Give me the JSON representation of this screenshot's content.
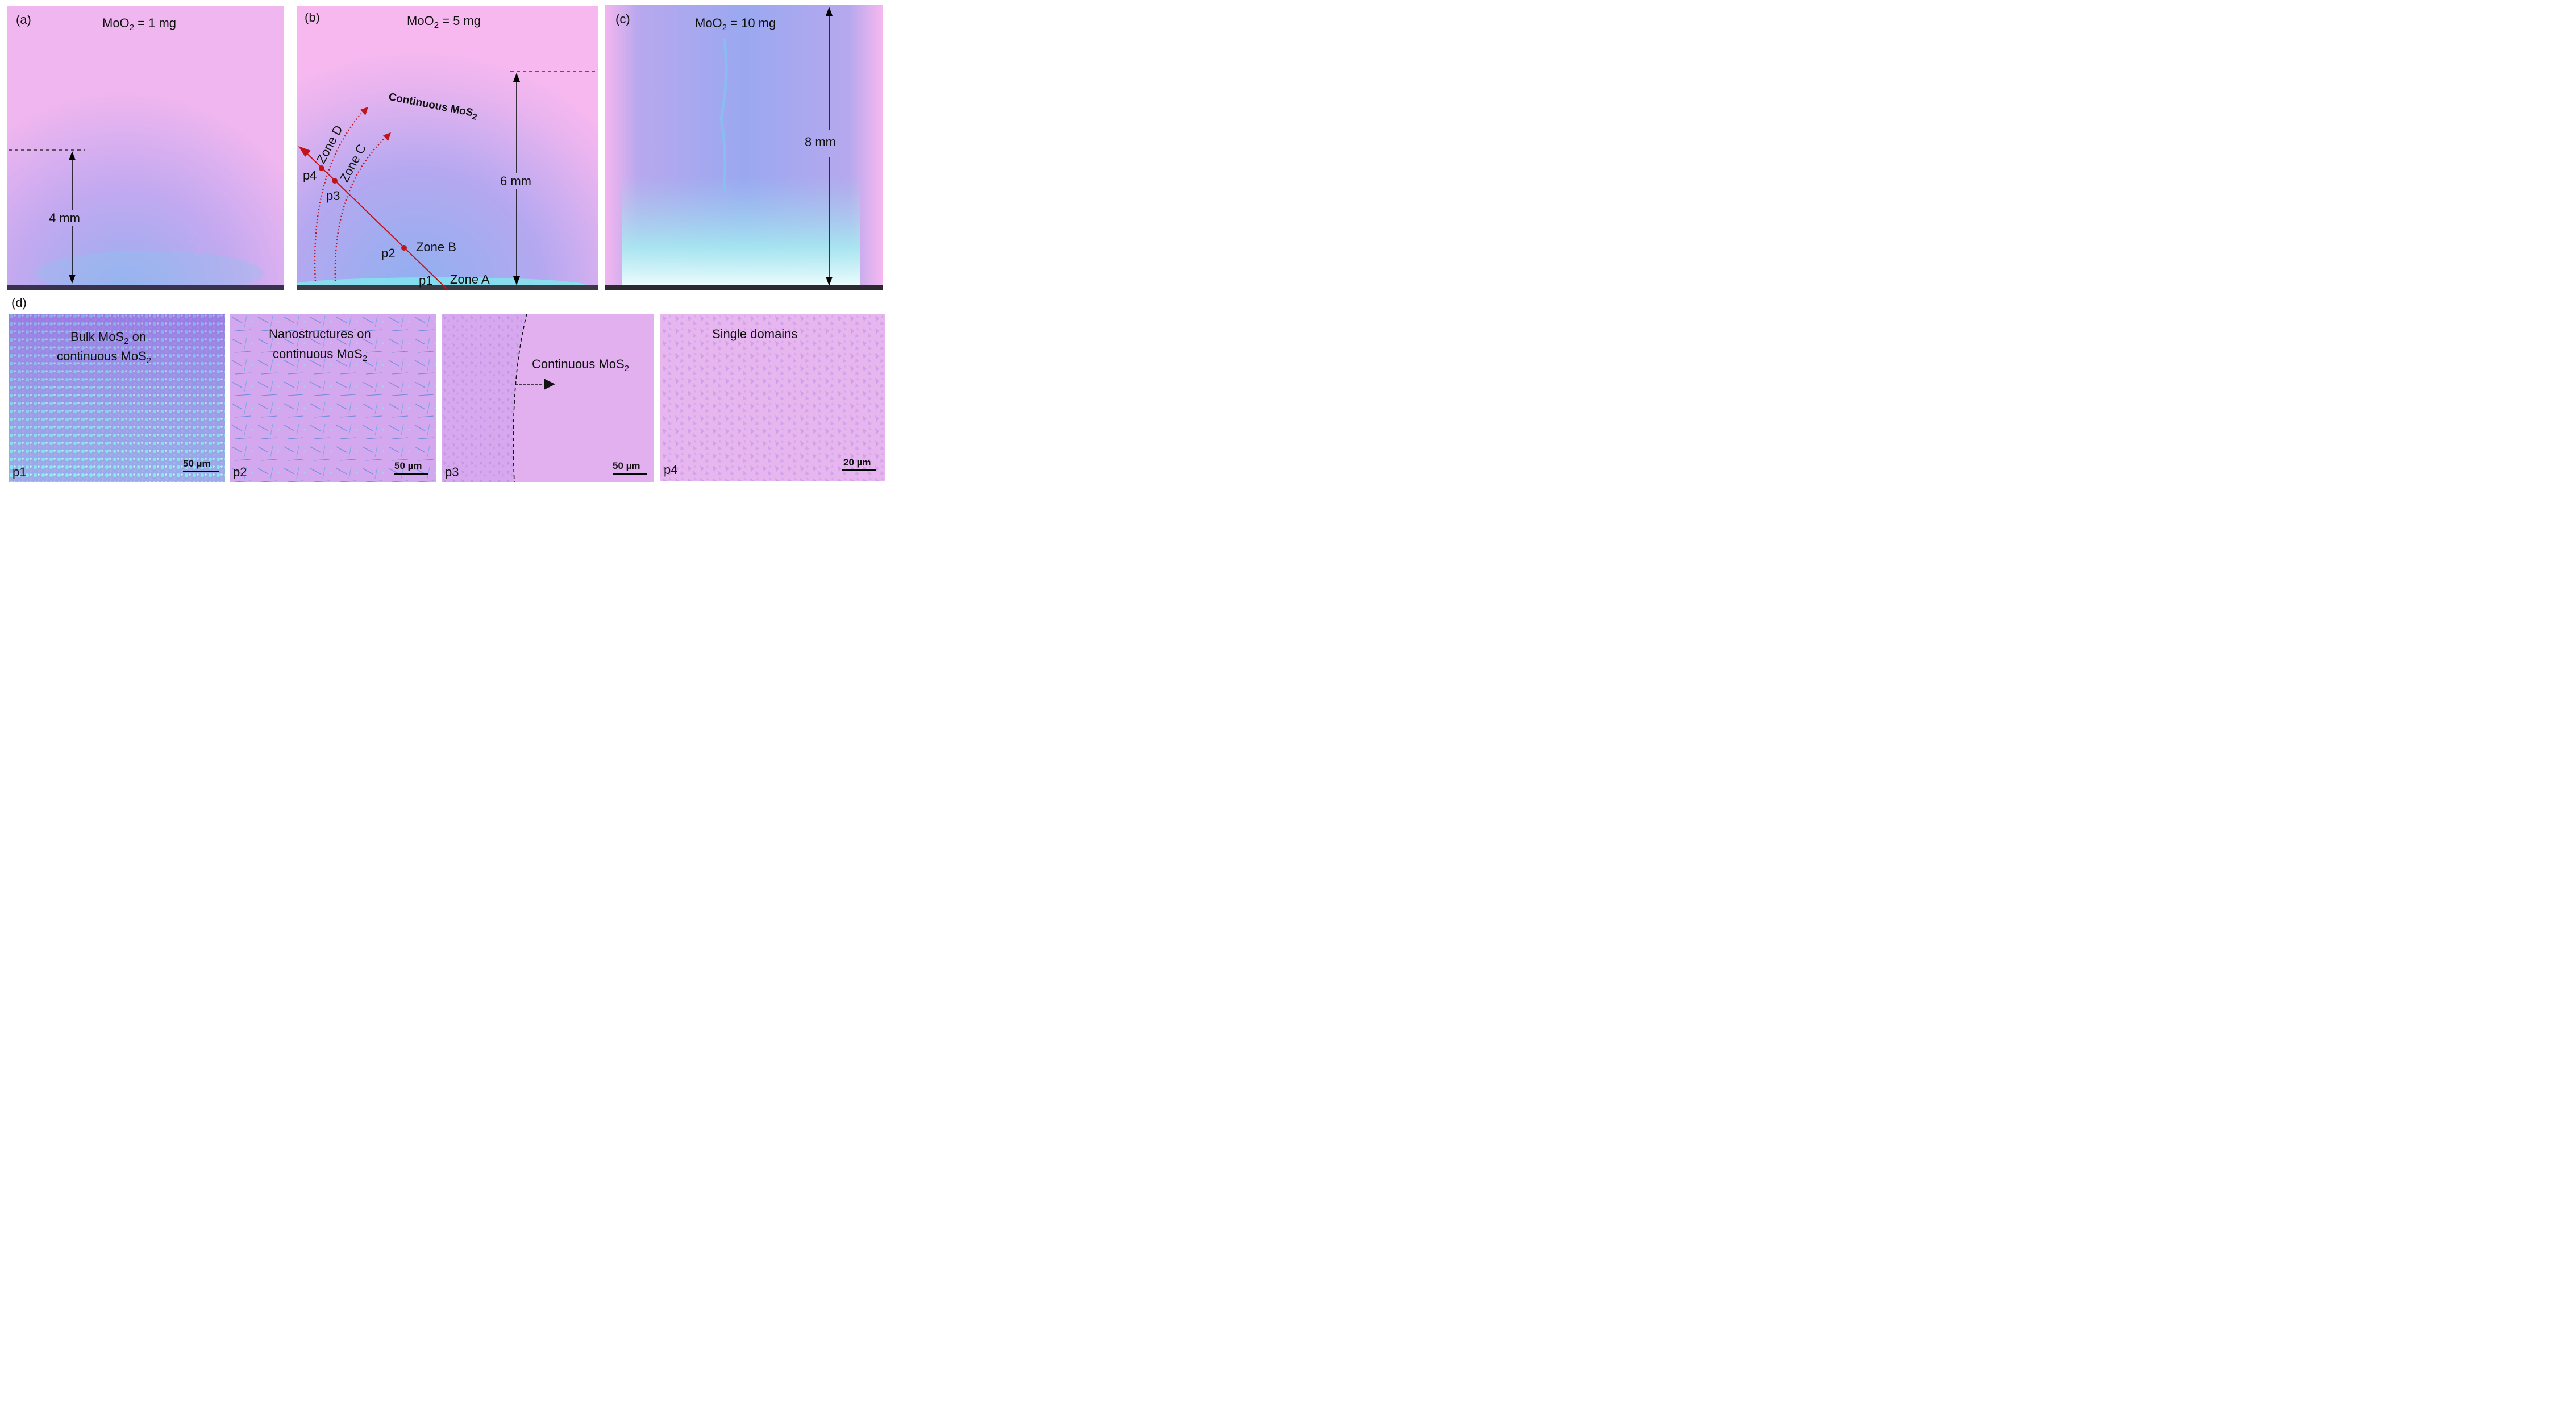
{
  "panel_a": {
    "label": "(a)",
    "title_pre": "MoO",
    "title_sub": "2",
    "title_post": " = 1 mg",
    "height_label": "4 mm"
  },
  "panel_b": {
    "label": "(b)",
    "title_pre": "MoO",
    "title_sub": "2",
    "title_post": " = 5 mg",
    "height_label": "6 mm",
    "continuous_pre": "Continuous MoS",
    "continuous_sub": "2",
    "zone_a": "Zone A",
    "zone_b": "Zone B",
    "zone_c": "Zone C",
    "zone_d": "Zone D",
    "p1": "p1",
    "p2": "p2",
    "p3": "p3",
    "p4": "p4"
  },
  "panel_c": {
    "label": "(c)",
    "title_pre": "MoO",
    "title_sub": "2",
    "title_post": " = 10 mg",
    "height_label": "8 mm"
  },
  "panel_d": {
    "label": "(d)",
    "images": [
      {
        "id": "p1",
        "line1_pre": "Bulk MoS",
        "line1_sub": "2",
        "line1_post": " on",
        "line2_pre": "continuous MoS",
        "line2_sub": "2",
        "scale": "50 µm"
      },
      {
        "id": "p2",
        "line1_pre": "Nanostructures on",
        "line1_sub": "",
        "line1_post": "",
        "line2_pre": "continuous MoS",
        "line2_sub": "2",
        "scale": "50 µm"
      },
      {
        "id": "p3",
        "line1_pre": "Continuous MoS",
        "line1_sub": "2",
        "line1_post": "",
        "line2_pre": "",
        "line2_sub": "",
        "scale": "50 µm"
      },
      {
        "id": "p4",
        "line1_pre": "Single domains",
        "line1_sub": "",
        "line1_post": "",
        "line2_pre": "",
        "line2_sub": "",
        "scale": "20 µm"
      }
    ]
  },
  "colors": {
    "substrate_pink": "#f4b8ef",
    "film_blue": "#9ea6ee",
    "bulk_cyan": "#7fe8e8",
    "arrow_red": "#c0141a"
  }
}
